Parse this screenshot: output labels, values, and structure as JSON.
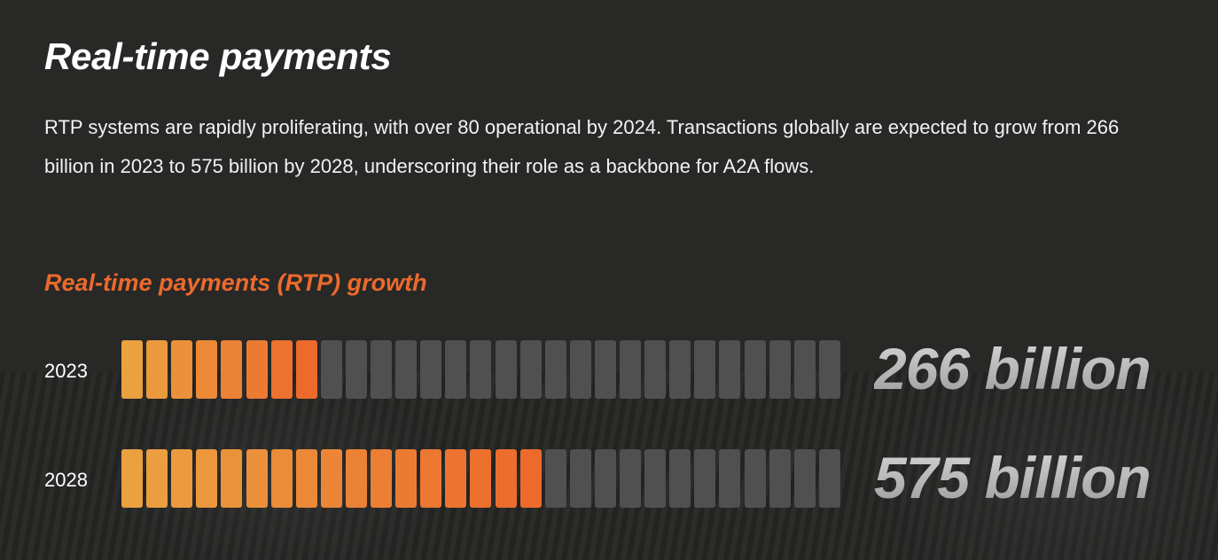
{
  "title": "Real-time payments",
  "description": "RTP systems are rapidly proliferating, with over 80 operational by 2024. Transactions globally are expected to grow from 266 billion in 2023 to 575 billion by 2028, underscoring their role as a backbone for A2A flows.",
  "chart_data": {
    "type": "bar",
    "title": "Real-time payments (RTP) growth",
    "categories": [
      "2023",
      "2028"
    ],
    "values": [
      266,
      575
    ],
    "unit": "billion transactions",
    "value_labels": [
      "266 billion",
      "575 billion"
    ],
    "segments_total": 29,
    "segments_filled": [
      8,
      17
    ],
    "colors": {
      "fill_start": "#EBA140",
      "fill_end": "#EC6A2C",
      "empty": "#505050"
    }
  }
}
